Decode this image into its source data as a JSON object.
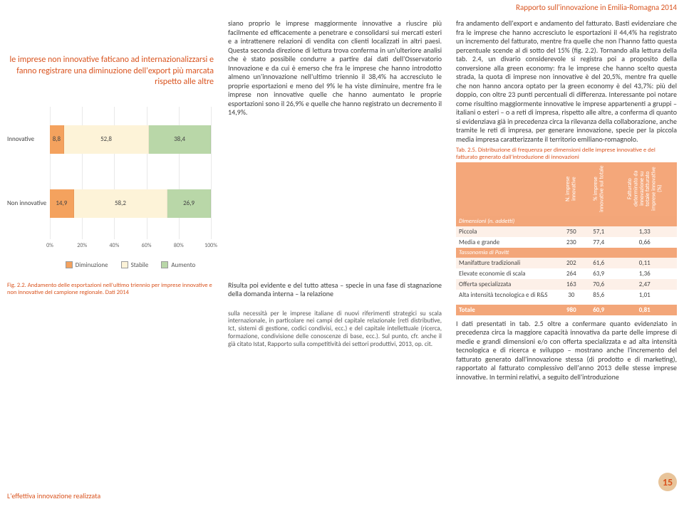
{
  "header": {
    "report_title": "Rapporto sull'innovazione in Emilia-Romagna 2014"
  },
  "pull_quote": "le imprese non innovative faticano ad internazionalizzarsi e fanno registrare una diminuzione dell'export più marcata rispetto alle altre",
  "mid_paragraph": "siano proprio le imprese maggiormente innovative a riuscire più facilmente ed efficacemente a penetrare e consolidarsi sui mercati esteri e a intrattenere relazioni di vendita con clienti localizzati in altri paesi. Questa seconda direzione di lettura trova conferma in un'ulteriore analisi che è stato possibile condurre a partire dai dati dell'Osservatorio Innovazione e da cui è emerso che fra le imprese che hanno introdotto almeno un'innovazione nell'ultimo triennio il 38,4% ha accresciuto le proprie esportazioni e meno del 9% le ha viste diminuire, mentre fra le imprese non innovative quelle che hanno aumentato le proprie esportazioni sono il 26,9% e quelle che hanno registrato un decremento il 14,9%.",
  "mid_paragraph2": "Risulta poi evidente e del tutto attesa – specie in una fase di stagnazione della domanda interna – la relazione",
  "mid_footnote": "sulla necessità per le imprese italiane di nuovi riferimenti strategici su scala internazionale, in particolare nei campi del capitale relazionale (reti distributive, Ict, sistemi di gestione, codici condivisi, ecc.) e del capitale intellettuale (ricerca, formazione, condivisione delle conoscenze di base, ecc.). Sul punto, cfr. anche il già citato Istat, Rapporto sulla competitività dei settori produttivi, 2013, op. cit.",
  "right_paragraph": "fra andamento dell'export e andamento del fatturato. Basti evidenziare che fra le imprese che hanno accresciuto le esportazioni il 44,4% ha registrato un incremento del fatturato, mentre fra quelle che non l'hanno fatto questa percentuale scende al di sotto del 15% (fig. 2.2). Tornando alla lettura della tab. 2.4, un divario considerevole si registra poi a proposito della conversione alla green economy: fra le imprese che hanno scelto questa strada, la quota di imprese non innovative è del 20,5%, mentre fra quelle che non hanno ancora optato per la green economy è del 43,7%: più del doppio, con oltre 23 punti percentuali di differenza. Interessante poi notare come risultino maggiormente innovative le imprese appartenenti a gruppi – italiani o esteri – o a reti di impresa, rispetto alle altre, a conferma di quanto si evidenziava già in precedenza circa la rilevanza della collaborazione, anche tramite le reti di impresa, per generare innovazione, specie per la piccola media impresa caratterizzante il territorio emiliano-romagnolo.",
  "right_paragraph2": "I dati presentati in tab. 2.5 oltre a confermare quanto evidenziato in precedenza circa la maggiore capacità innovativa da parte delle imprese di medie e grandi dimensioni e/o con offerta specializzata e ad alta intensità tecnologica e di ricerca e sviluppo – mostrano anche l'incremento del fatturato generato dall'innovazione stessa (di prodotto e di marketing), rapportato al fatturato complessivo dell'anno 2013 delle stesse imprese innovative. In termini relativi, a seguito dell'introduzione",
  "chart": {
    "type": "stacked-bar-horizontal",
    "categories": [
      "Innovative",
      "Non innovative"
    ],
    "series": [
      {
        "name": "Diminuzione",
        "color": "#f4a25e",
        "values": [
          8.8,
          14.9
        ]
      },
      {
        "name": "Stabile",
        "color": "#fdf3d8",
        "values": [
          52.8,
          58.2
        ]
      },
      {
        "name": "Aumento",
        "color": "#b9d7a8",
        "values": [
          38.4,
          26.9
        ]
      }
    ],
    "xlim": [
      0,
      100
    ],
    "xtick_step": 20,
    "grid_color": "#e9e9e9",
    "background": "#ffffff",
    "caption": "Fig. 2.2. Andamento delle esportazioni nell'ultimo triennio per imprese innovative e non innovative del campione regionale. Dati 2014"
  },
  "table": {
    "caption": "Tab. 2.5. Distribuzione di frequenza per dimensioni delle imprese innovative e del fatturato generato dall'introduzione di innovazioni",
    "col_headers": [
      "",
      "N. imprese innovative",
      "% imprese innovative sul totale",
      "Fatturato determinato da innovazione su totale fatturato imprese innovative (%)"
    ],
    "section1": "Dimensioni (n. addetti)",
    "rows1": [
      [
        "Piccola",
        "750",
        "57,1",
        "1,33"
      ],
      [
        "Media e grande",
        "230",
        "77,4",
        "0,66"
      ]
    ],
    "section2": "Tassonomia di Pavitt",
    "rows2": [
      [
        "Manifatture tradizionali",
        "202",
        "61,6",
        "0,11"
      ],
      [
        "Elevate economie di scala",
        "264",
        "63,9",
        "1,36"
      ],
      [
        "Offerta specializzata",
        "163",
        "70,6",
        "2,47"
      ],
      [
        "Alta intensità tecnologica e di R&S",
        "30",
        "85,6",
        "1,01"
      ]
    ],
    "total": [
      "Totale",
      "980",
      "60,9",
      "0,81"
    ],
    "header_bg": "#f4a77a",
    "row_odd_bg": "#fdf0e8"
  },
  "footer": {
    "section": "L'effettiva innovazione realizzata",
    "page": "15"
  }
}
